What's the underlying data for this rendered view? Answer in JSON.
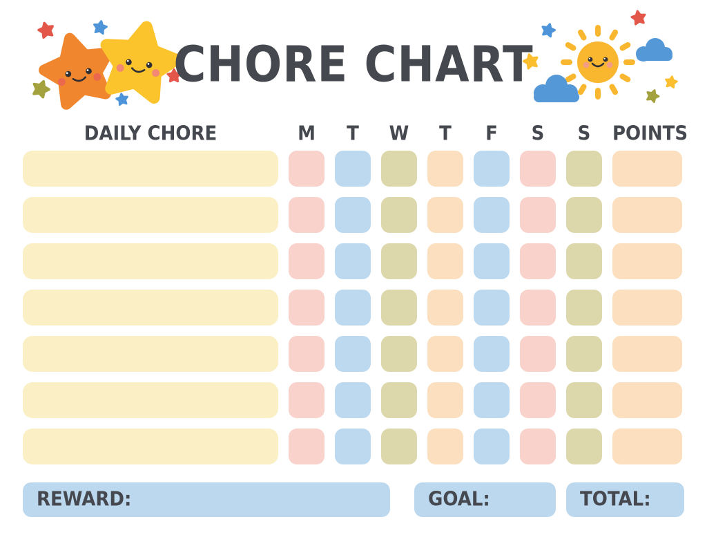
{
  "title": "CHORE CHART",
  "table": {
    "chore_header": "DAILY CHORE",
    "day_headers": [
      "M",
      "T",
      "W",
      "T",
      "F",
      "S",
      "S"
    ],
    "points_header": "POINTS",
    "rows": 7,
    "chore_values": [
      "",
      "",
      "",
      "",
      "",
      "",
      ""
    ],
    "day_cell_colors": [
      "pink",
      "blue",
      "olive",
      "peach",
      "blue",
      "pink",
      "olive"
    ],
    "points_cell_color": "peach"
  },
  "footer": {
    "reward_label": "REWARD:",
    "goal_label": "GOAL:",
    "total_label": "TOTAL:"
  },
  "decorations": {
    "left": "two-smiling-stars",
    "right": "smiling-sun-with-clouds"
  },
  "colors": {
    "text": "#45484E",
    "chore_bar_yellow": "#FBEFC5",
    "cell_pink": "#F9D2CC",
    "cell_blue": "#BDD9EF",
    "cell_olive": "#DDD7AC",
    "cell_peach": "#FBDFBE",
    "footer_blue": "#BCD8EE",
    "star_orange": "#F0862E",
    "star_yellow": "#FBC32C",
    "sun_yellow": "#F9B62F",
    "cloud_blue": "#5598D8",
    "mini_red": "#E2574A",
    "mini_blue": "#4D94D8",
    "mini_olive": "#A4A23F",
    "mini_yellow": "#FBBE2F",
    "cheek_orange_star": "#EA6552",
    "cheek_yellow_star": "#F2827B",
    "cheek_sun": "#F29A8E"
  }
}
